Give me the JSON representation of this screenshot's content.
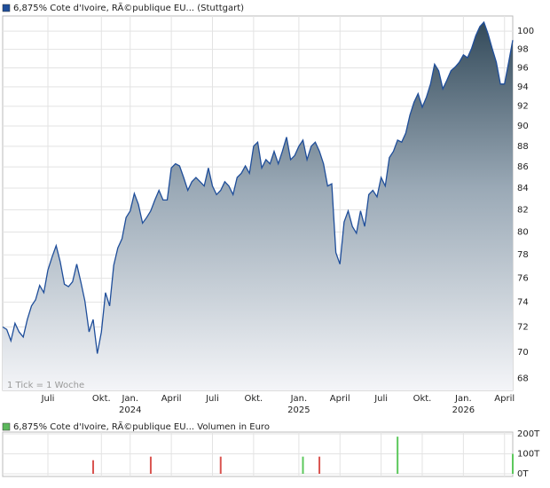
{
  "chart_data": [
    {
      "type": "area",
      "log": true,
      "grid": true,
      "note": "1 Tick = 1 Woche",
      "series": [
        {
          "name": "6,875% Cote d'Ivoire, RÃ©publique EU... (Stuttgart)",
          "color": "#1f4e9a",
          "values": [
            72.0,
            71.8,
            70.9,
            72.3,
            71.6,
            71.2,
            72.6,
            73.7,
            74.2,
            75.4,
            74.8,
            76.7,
            77.8,
            78.8,
            77.4,
            75.5,
            75.3,
            75.7,
            77.2,
            75.7,
            74.1,
            71.6,
            72.6,
            69.9,
            71.6,
            74.8,
            73.7,
            77.1,
            78.6,
            79.4,
            81.3,
            81.9,
            83.5,
            82.5,
            80.8,
            81.3,
            81.9,
            82.9,
            83.8,
            82.9,
            82.9,
            85.9,
            86.3,
            86.1,
            85.0,
            83.8,
            84.6,
            85.0,
            84.6,
            84.2,
            85.9,
            84.2,
            83.4,
            83.8,
            84.6,
            84.2,
            83.4,
            85.0,
            85.4,
            86.1,
            85.4,
            88.0,
            88.4,
            85.9,
            86.7,
            86.3,
            87.5,
            86.3,
            87.5,
            88.9,
            86.7,
            87.1,
            88.0,
            88.6,
            86.7,
            88.0,
            88.4,
            87.5,
            86.3,
            84.2,
            84.4,
            78.2,
            77.2,
            80.9,
            81.9,
            80.5,
            79.9,
            81.9,
            80.5,
            83.4,
            83.8,
            83.2,
            85.0,
            84.2,
            86.9,
            87.5,
            88.6,
            88.4,
            89.3,
            91.1,
            92.4,
            93.3,
            91.9,
            92.9,
            94.3,
            96.4,
            95.7,
            93.8,
            94.7,
            95.7,
            96.1,
            96.6,
            97.4,
            97.1,
            98.1,
            99.5,
            100.5,
            101.0,
            99.7,
            98.1,
            96.6,
            94.3,
            94.3,
            96.6,
            99.0
          ]
        }
      ],
      "ylim": [
        67.1,
        101.7
      ],
      "yticks": [
        68,
        70,
        72,
        74,
        76,
        78,
        80,
        82,
        84,
        86,
        88,
        90,
        92,
        94,
        96,
        98,
        100
      ],
      "xticks": [
        {
          "value": 11,
          "label": "Juli"
        },
        {
          "value": 24,
          "label": "Okt."
        },
        {
          "value": 31,
          "label": "Jan.",
          "year": "2024"
        },
        {
          "value": 41,
          "label": "April"
        },
        {
          "value": 51,
          "label": "Juli"
        },
        {
          "value": 61,
          "label": "Okt."
        },
        {
          "value": 72,
          "label": "Jan.",
          "year": "2025"
        },
        {
          "value": 82,
          "label": "April"
        },
        {
          "value": 92,
          "label": "Juli"
        },
        {
          "value": 102,
          "label": "Okt."
        },
        {
          "value": 112,
          "label": "Jan.",
          "year": "2026"
        },
        {
          "value": 122,
          "label": "April"
        }
      ]
    },
    {
      "type": "bar",
      "grid": true,
      "series": [
        {
          "name": "6,875% Cote d'Ivoire, RÃ©publique EU... Volumen in Euro",
          "color": "#5cb85c"
        }
      ],
      "x": [
        22,
        36,
        53,
        73,
        77,
        96,
        124
      ],
      "values": [
        68,
        86,
        86,
        86,
        86,
        186,
        100
      ],
      "colors": [
        "#d9534f",
        "#d9534f",
        "#d9534f",
        "#5cc85c",
        "#d9534f",
        "#5cc85c",
        "#5cc85c"
      ],
      "ylim": [
        0,
        200
      ],
      "yticks": [
        {
          "value": 0,
          "label": "0T"
        },
        {
          "value": 100,
          "label": "100T"
        },
        {
          "value": 200,
          "label": "200T"
        }
      ]
    }
  ]
}
